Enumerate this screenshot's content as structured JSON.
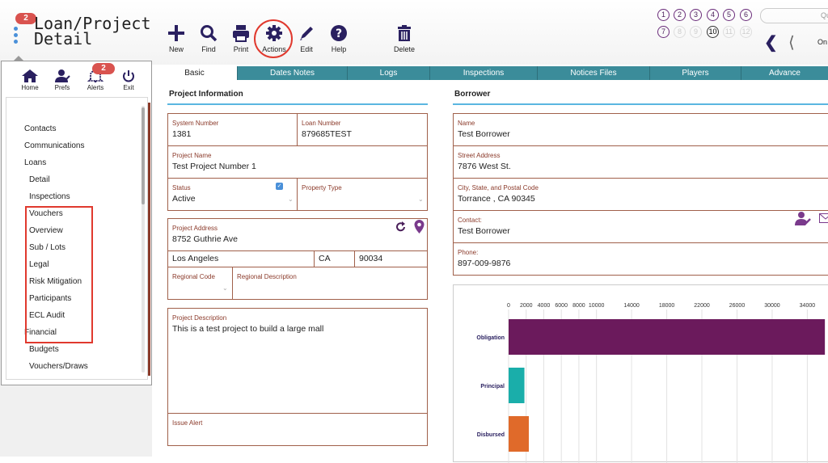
{
  "header": {
    "menu_badge": "2",
    "title_line1": "Loan/Project",
    "title_line2": "Detail",
    "toolbar": [
      {
        "key": "new",
        "label": "New"
      },
      {
        "key": "find",
        "label": "Find"
      },
      {
        "key": "print",
        "label": "Print"
      },
      {
        "key": "actions",
        "label": "Actions"
      },
      {
        "key": "edit",
        "label": "Edit"
      },
      {
        "key": "help",
        "label": "Help"
      },
      {
        "key": "delete",
        "label": "Delete"
      }
    ],
    "record_numbers_row1": [
      "1",
      "2",
      "3",
      "4",
      "5",
      "6"
    ],
    "record_numbers_row2": [
      "7",
      "8",
      "9",
      "10",
      "11",
      "12"
    ],
    "search_placeholder": "Qu",
    "on_label": "On"
  },
  "left_menu": {
    "mini_toolbar": [
      {
        "key": "home",
        "label": "Home"
      },
      {
        "key": "prefs",
        "label": "Prefs"
      },
      {
        "key": "alerts",
        "label": "Alerts",
        "badge": "2"
      },
      {
        "key": "exit",
        "label": "Exit"
      }
    ],
    "items": [
      {
        "label": "Contacts",
        "indent": 0
      },
      {
        "label": "Communications",
        "indent": 0
      },
      {
        "label": "Loans",
        "indent": 0
      },
      {
        "label": "Detail",
        "indent": 1
      },
      {
        "label": "Inspections",
        "indent": 1
      },
      {
        "label": "Vouchers",
        "indent": 1
      },
      {
        "label": "Overview",
        "indent": 1
      },
      {
        "label": "Sub / Lots",
        "indent": 1
      },
      {
        "label": "Legal",
        "indent": 1
      },
      {
        "label": "Risk Mitigation",
        "indent": 1
      },
      {
        "label": "Participants",
        "indent": 1
      },
      {
        "label": "ECL Audit",
        "indent": 1
      },
      {
        "label": "Financial",
        "indent": 0
      },
      {
        "label": "Budgets",
        "indent": 1
      },
      {
        "label": "Vouchers/Draws",
        "indent": 1
      }
    ]
  },
  "tabs": [
    "Basic",
    "Dates Notes",
    "Logs",
    "Inspections",
    "Notices Files",
    "Players",
    "Advance"
  ],
  "project": {
    "section_title": "Project Information",
    "system_number_label": "System Number",
    "system_number": "1381",
    "loan_number_label": "Loan Number",
    "loan_number": "879685TEST",
    "project_name_label": "Project Name",
    "project_name": "Test Project Number 1",
    "status_label": "Status",
    "status": "Active",
    "property_type_label": "Property Type",
    "property_type": "",
    "address_label": "Project Address",
    "address": "8752 Guthrie Ave",
    "city": "Los Angeles",
    "state": "CA",
    "zip": "90034",
    "regional_code_label": "Regional Code",
    "regional_desc_label": "Regional Description",
    "description_label": "Project Description",
    "description": "This is a test project to build a large mall",
    "issue_alert_label": "Issue Alert"
  },
  "borrower": {
    "section_title": "Borrower",
    "name_label": "Name",
    "name": "Test Borrower",
    "street_label": "Street Address",
    "street": "7876 West St.",
    "city_label": "City, State, and Postal Code",
    "city": "Torrance , CA  90345",
    "contact_label": "Contact:",
    "contact": "Test Borrower",
    "phone_label": "Phone:",
    "phone": "897-009-9876"
  },
  "chart_data": {
    "type": "bar",
    "orientation": "horizontal",
    "categories": [
      "Obligation",
      "Principal",
      "Disbursed"
    ],
    "values": [
      36000,
      1800,
      2300
    ],
    "colors": [
      "#6b1a5c",
      "#1aaeaa",
      "#e06a2a"
    ],
    "x_ticks": [
      0,
      2000,
      4000,
      6000,
      8000,
      10000,
      14000,
      18000,
      22000,
      26000,
      30000,
      34000
    ],
    "x_tick_labels": [
      "0",
      "2000",
      "4000",
      "6000",
      "8000",
      "10000",
      "14000",
      "18000",
      "22000",
      "26000",
      "30000",
      "34000"
    ],
    "xlim": [
      0,
      37000
    ],
    "grid": true
  }
}
